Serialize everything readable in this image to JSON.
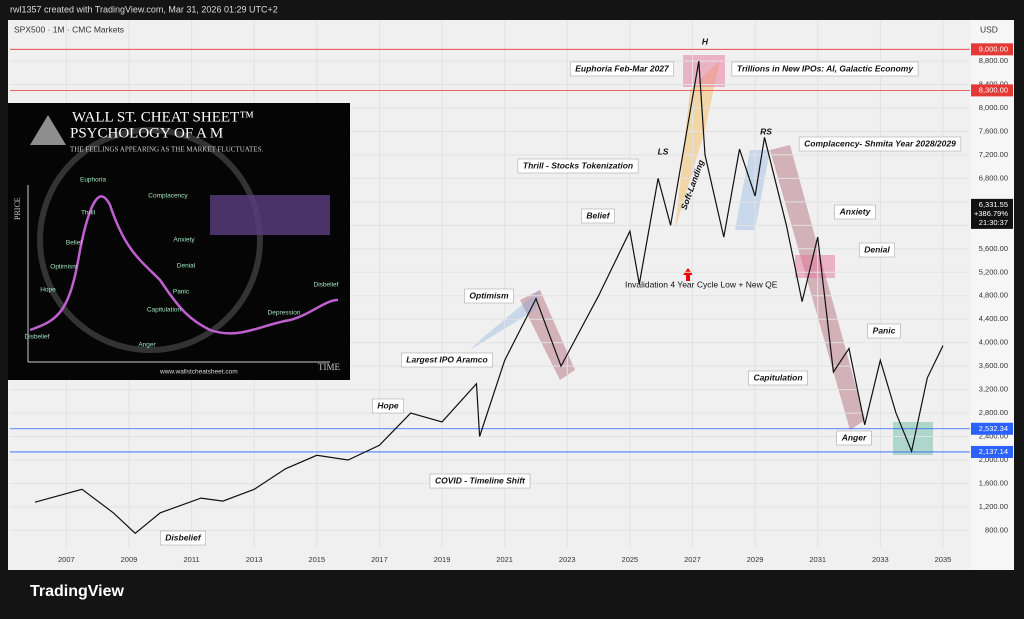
{
  "header": {
    "credit": "rwl1357 created with TradingView.com, Mar 31, 2026 01:29 UTC+2",
    "symbol": "SPX500 · 1M · CMC Markets",
    "currency": "USD"
  },
  "chart_data": {
    "type": "line",
    "color": "#111111",
    "x": [
      2006.0,
      2007.5,
      2008.5,
      2009.2,
      2010.0,
      2011.3,
      2012.0,
      2013.0,
      2014.0,
      2015.0,
      2016.0,
      2017.0,
      2018.0,
      2019.0,
      2020.1,
      2020.2,
      2021.0,
      2022.0,
      2022.8,
      2024.0,
      2025.0,
      2025.3,
      2025.9,
      2026.3,
      2027.2,
      2027.4,
      2028.0,
      2028.5,
      2029.0,
      2029.3,
      2030.0,
      2030.5,
      2031.0,
      2031.5,
      2032.0,
      2032.5,
      2033.0,
      2033.5,
      2034.0,
      2034.5,
      2035.0
    ],
    "values": [
      1280,
      1500,
      1100,
      750,
      1100,
      1350,
      1300,
      1500,
      1850,
      2080,
      2000,
      2250,
      2800,
      2650,
      3300,
      2400,
      3700,
      4750,
      3600,
      4800,
      5900,
      5000,
      6800,
      6000,
      8800,
      7200,
      5800,
      7300,
      6500,
      7500,
      6000,
      4700,
      5800,
      3500,
      3900,
      2600,
      3700,
      2800,
      2150,
      3400,
      3950
    ],
    "xlim": [
      2005.2,
      2035.8
    ],
    "ylim": [
      500,
      9500
    ],
    "xticks": [
      2007,
      2009,
      2011,
      2013,
      2015,
      2017,
      2019,
      2021,
      2023,
      2025,
      2027,
      2029,
      2031,
      2033,
      2035
    ],
    "yticks": [
      {
        "value": 800,
        "label": "800.00"
      },
      {
        "value": 1200,
        "label": "1,200.00"
      },
      {
        "value": 1600,
        "label": "1,600.00"
      },
      {
        "value": 2000,
        "label": "2,000.00"
      },
      {
        "value": 2400,
        "label": "2,400.00"
      },
      {
        "value": 2800,
        "label": "2,800.00"
      },
      {
        "value": 3200,
        "label": "3,200.00"
      },
      {
        "value": 3600,
        "label": "3,600.00"
      },
      {
        "value": 4000,
        "label": "4,000.00"
      },
      {
        "value": 4400,
        "label": "4,400.00"
      },
      {
        "value": 4800,
        "label": "4,800.00"
      },
      {
        "value": 5200,
        "label": "5,200.00"
      },
      {
        "value": 5600,
        "label": "5,600.00"
      },
      {
        "value": 6000,
        "label": "6,000.00"
      },
      {
        "value": 6400,
        "label": "6,400.00"
      },
      {
        "value": 6800,
        "label": "6,800.00"
      },
      {
        "value": 7200,
        "label": "7,200.00"
      },
      {
        "value": 7600,
        "label": "7,600.00"
      },
      {
        "value": 8000,
        "label": "8,000.00"
      },
      {
        "value": 8400,
        "label": "8,400.00"
      },
      {
        "value": 8800,
        "label": "8,800.00"
      }
    ],
    "grid": true,
    "price_lines": [
      {
        "value": 9000,
        "label": "9,000.00",
        "color": "#e53935"
      },
      {
        "value": 8300,
        "label": "8,300.00",
        "color": "#e53935"
      },
      {
        "value": 2532.34,
        "label": "2,532.34",
        "color": "#2962ff"
      },
      {
        "value": 2137.14,
        "label": "2,137.14",
        "color": "#2962ff"
      }
    ],
    "last_price": {
      "value": 6331.55,
      "label": "6,331.55",
      "change": "+386.79%",
      "countdown": "21:30:37"
    }
  },
  "annotations": [
    "H",
    "Euphoria Feb-Mar 2027",
    "Trillions in New IPOs: AI, Galactic Economy",
    "RS",
    "LS",
    "Complacency- Shmita Year 2028/2029",
    "Thrill - Stocks Tokenization",
    "Soft-Landing",
    "Belief",
    "Anxiety",
    "Denial",
    "Invalidation 4 Year Cycle Low + New QE",
    "Optimism",
    "Panic",
    "Capitulation",
    "Largest IPO Aramco",
    "Hope",
    "Anger",
    "COVID - Timeline Shift",
    "Disbelief"
  ],
  "inset": {
    "brand": "WALL ST. CHEAT SHEET™",
    "title": "PSYCHOLOGY OF A M",
    "tagline": "THE FEELINGS APPEARING AS THE MARKET FLUCTUATES.",
    "axis_price": "PRICE",
    "axis_time": "TIME",
    "stages": [
      "Euphoria",
      "Complacency",
      "Thrill",
      "Anxiety",
      "Belief",
      "Denial",
      "Optimism",
      "Panic",
      "Hope",
      "Capitulation",
      "Anger",
      "Depression",
      "Disbelief",
      "Disbelief"
    ],
    "url": "www.wallstcheatsheet.com"
  },
  "footer": {
    "logo": "TradingView"
  }
}
